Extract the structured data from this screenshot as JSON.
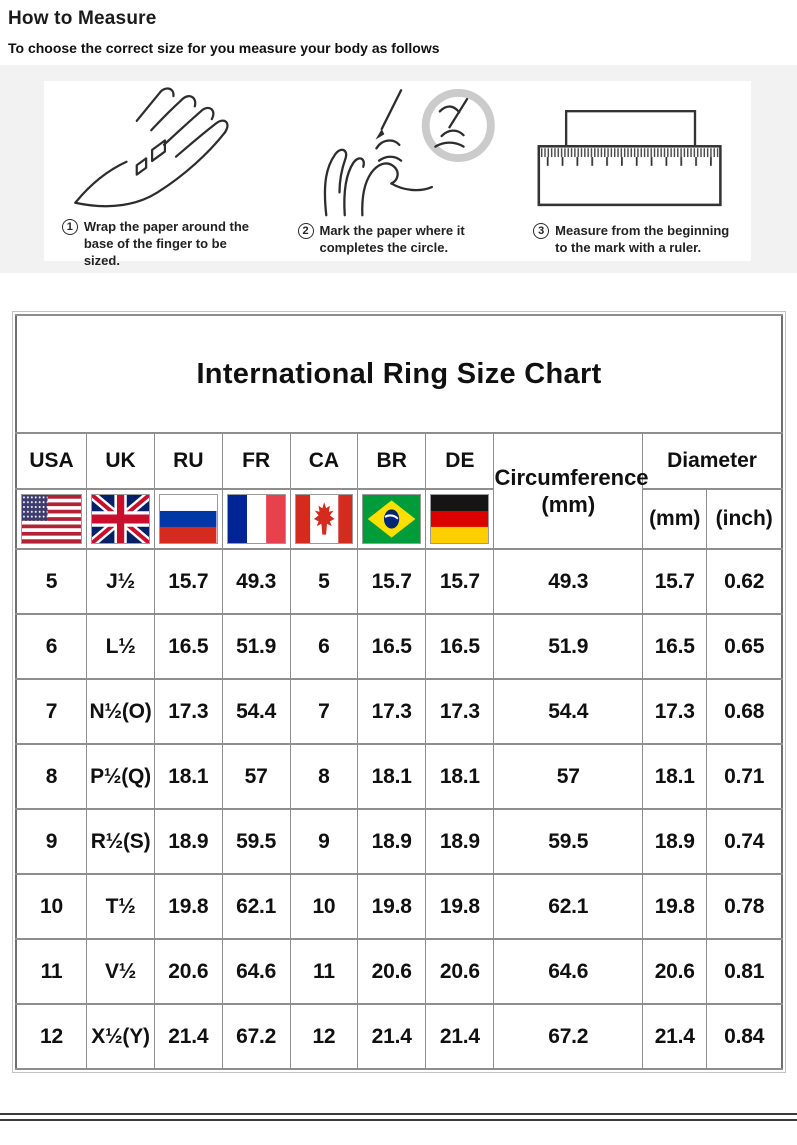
{
  "page": {
    "title": "How to Measure",
    "subtitle": "To choose the correct size for you measure your body as follows"
  },
  "steps": [
    {
      "number": "1",
      "caption": "Wrap the paper around the base of the finger to be sized.",
      "icon": "hand-with-paper-icon"
    },
    {
      "number": "2",
      "caption": "Mark the paper where it completes the circle.",
      "icon": "pencil-marking-paper-icon"
    },
    {
      "number": "3",
      "caption": "Measure from the beginning to the mark with a ruler.",
      "icon": "ruler-icon"
    }
  ],
  "chart_data": {
    "type": "table",
    "title": "International Ring Size Chart",
    "columns": [
      "USA",
      "UK",
      "RU",
      "FR",
      "CA",
      "BR",
      "DE",
      "Circumference (mm)",
      "Diameter (mm)",
      "Diameter (inch)"
    ],
    "header": {
      "countries": [
        {
          "code": "USA",
          "flag_icon": "flag-usa-icon"
        },
        {
          "code": "UK",
          "flag_icon": "flag-uk-icon"
        },
        {
          "code": "RU",
          "flag_icon": "flag-ru-icon"
        },
        {
          "code": "FR",
          "flag_icon": "flag-fr-icon"
        },
        {
          "code": "CA",
          "flag_icon": "flag-ca-icon"
        },
        {
          "code": "BR",
          "flag_icon": "flag-br-icon"
        },
        {
          "code": "DE",
          "flag_icon": "flag-de-icon"
        }
      ],
      "circumference_label": "Circumference",
      "circumference_unit": "(mm)",
      "diameter_label": "Diameter",
      "diameter_units": [
        "(mm)",
        "(inch)"
      ]
    },
    "rows": [
      [
        "5",
        "J½",
        "15.7",
        "49.3",
        "5",
        "15.7",
        "15.7",
        "49.3",
        "15.7",
        "0.62"
      ],
      [
        "6",
        "L½",
        "16.5",
        "51.9",
        "6",
        "16.5",
        "16.5",
        "51.9",
        "16.5",
        "0.65"
      ],
      [
        "7",
        "N½(O)",
        "17.3",
        "54.4",
        "7",
        "17.3",
        "17.3",
        "54.4",
        "17.3",
        "0.68"
      ],
      [
        "8",
        "P½(Q)",
        "18.1",
        "57",
        "8",
        "18.1",
        "18.1",
        "57",
        "18.1",
        "0.71"
      ],
      [
        "9",
        "R½(S)",
        "18.9",
        "59.5",
        "9",
        "18.9",
        "18.9",
        "59.5",
        "18.9",
        "0.74"
      ],
      [
        "10",
        "T½",
        "19.8",
        "62.1",
        "10",
        "19.8",
        "19.8",
        "62.1",
        "19.8",
        "0.78"
      ],
      [
        "11",
        "V½",
        "20.6",
        "64.6",
        "11",
        "20.6",
        "20.6",
        "64.6",
        "20.6",
        "0.81"
      ],
      [
        "12",
        "X½(Y)",
        "21.4",
        "67.2",
        "12",
        "21.4",
        "21.4",
        "67.2",
        "21.4",
        "0.84"
      ]
    ]
  }
}
